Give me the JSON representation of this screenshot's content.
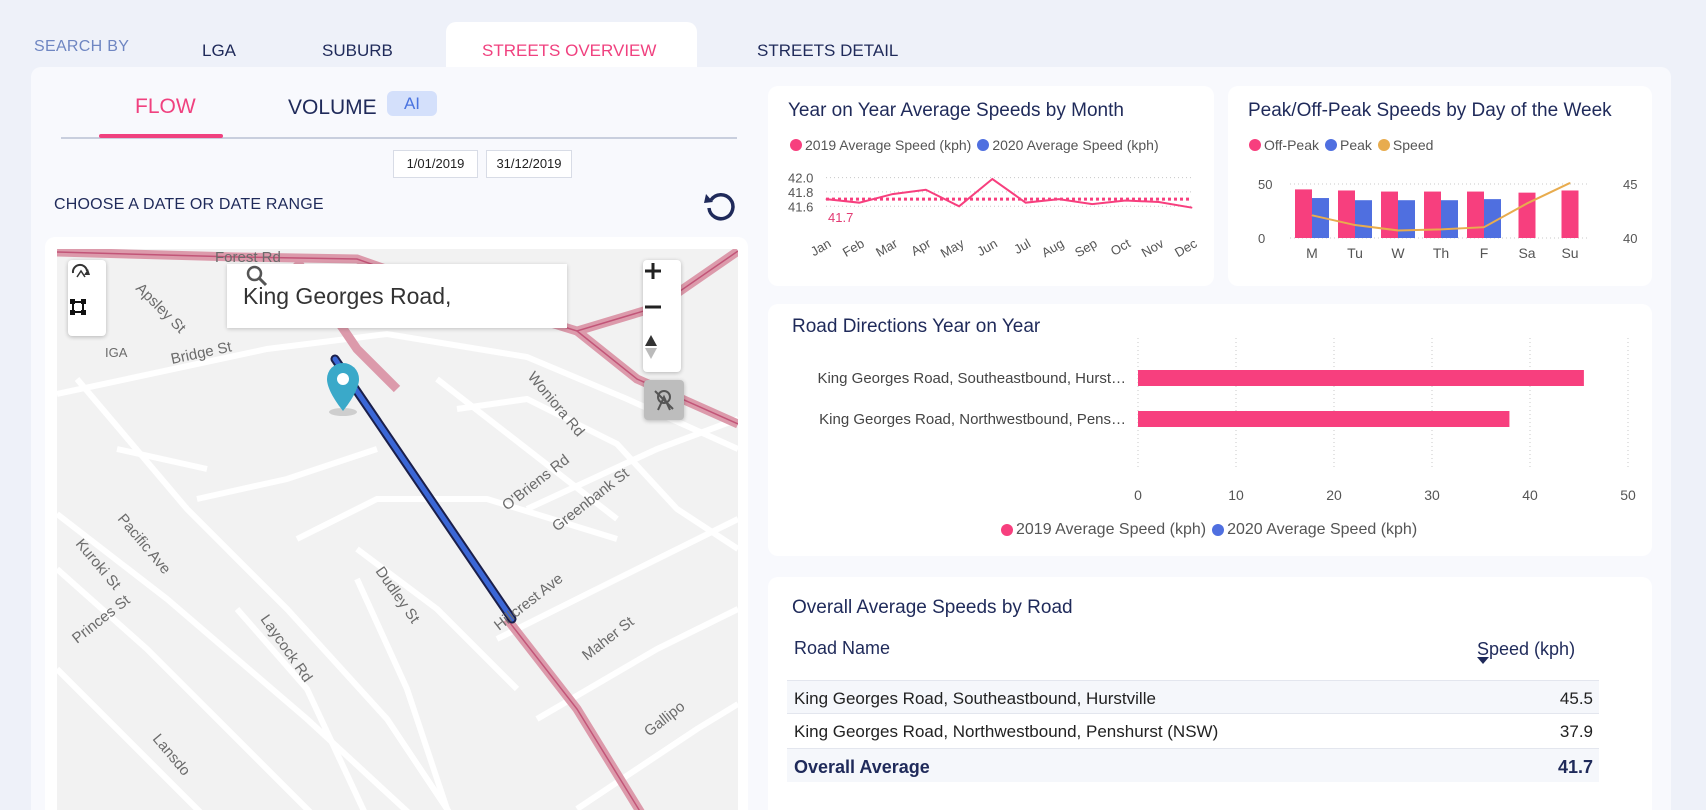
{
  "nav": {
    "search_by": "SEARCH BY",
    "tabs": [
      "LGA",
      "SUBURB",
      "STREETS OVERVIEW",
      "STREETS DETAIL"
    ],
    "active": "STREETS OVERVIEW"
  },
  "left": {
    "tab_flow": "FLOW",
    "tab_volume": "VOLUME",
    "ai_badge": "AI",
    "start_date": "1/01/2019",
    "end_date": "31/12/2019",
    "choose_label": "CHOOSE A DATE OR DATE RANGE"
  },
  "map": {
    "search_value": "King Georges Road,",
    "street_labels": [
      "Forest Rd",
      "Apsley St",
      "Bridge St",
      "IGA",
      "Woniora Rd",
      "O'Briens Rd",
      "Greenbank St",
      "Pacific Ave",
      "Kuroki St",
      "Princes St",
      "Laycock Rd",
      "Dudley St",
      "Hillcrest Ave",
      "Maher St",
      "Lansdo",
      "Gallipo"
    ],
    "icons": [
      "rotate-map-icon",
      "select-area-icon",
      "zoom-in-icon",
      "zoom-out-icon",
      "compass-icon",
      "traffic-layer-icon",
      "location-pin-icon",
      "search-icon"
    ]
  },
  "colors": {
    "pink": "#f73f7e",
    "blue": "#4f6fe0",
    "gold": "#e8ac4e",
    "navy": "#1f2a5a"
  },
  "chart_data": [
    {
      "type": "line",
      "title": "Year on Year Average Speeds by Month",
      "legend": [
        "2019 Average Speed (kph)",
        "2020 Average Speed (kph)"
      ],
      "categories": [
        "Jan",
        "Feb",
        "Mar",
        "Apr",
        "May",
        "Jun",
        "Jul",
        "Aug",
        "Sep",
        "Oct",
        "Nov",
        "Dec"
      ],
      "series": [
        {
          "name": "2019 Average Speed (kph)",
          "values": [
            41.7,
            41.65,
            41.77,
            41.83,
            41.6,
            41.98,
            41.65,
            41.7,
            41.63,
            41.68,
            41.66,
            41.58
          ]
        }
      ],
      "average_line": 41.7,
      "average_label": "41.7",
      "yticks": [
        "42.0",
        "41.8",
        "41.6"
      ],
      "ylim": [
        41.52,
        42.05
      ]
    },
    {
      "type": "bar",
      "title": "Peak/Off-Peak Speeds by Day of the Week",
      "legend": [
        "Off-Peak",
        "Peak",
        "Speed"
      ],
      "categories": [
        "M",
        "Tu",
        "W",
        "Th",
        "F",
        "Sa",
        "Su"
      ],
      "series": [
        {
          "name": "Off-Peak",
          "values": [
            45,
            44,
            43,
            43,
            43,
            42,
            44
          ]
        },
        {
          "name": "Peak",
          "values": [
            37,
            35,
            35,
            35,
            36,
            null,
            null
          ]
        },
        {
          "name": "Speed",
          "axis": "right",
          "values": [
            42.1,
            41.2,
            40.7,
            40.8,
            41.0,
            43.2,
            45.1
          ]
        }
      ],
      "yticks_left": [
        "50",
        "0"
      ],
      "yticks_right": [
        "45",
        "40"
      ],
      "ylim_left": [
        0,
        50
      ],
      "ylim_right": [
        40,
        45
      ]
    },
    {
      "type": "bar",
      "orientation": "horizontal",
      "title": "Road Directions Year on Year",
      "categories": [
        "King Georges Road, Southeastbound, Hurst…",
        "King Georges Road, Northwestbound, Pens…"
      ],
      "series": [
        {
          "name": "2019 Average Speed (kph)",
          "values": [
            45.5,
            37.9
          ]
        }
      ],
      "legend": [
        "2019 Average Speed (kph)",
        "2020 Average Speed (kph)"
      ],
      "xticks": [
        "0",
        "10",
        "20",
        "30",
        "40",
        "50"
      ],
      "xlim": [
        0,
        50
      ]
    },
    {
      "type": "table",
      "title": "Overall Average Speeds by Road",
      "columns": [
        "Road Name",
        "Speed (kph)"
      ],
      "rows": [
        [
          "King Georges Road, Southeastbound, Hurstville",
          "45.5"
        ],
        [
          "King Georges Road, Northwestbound, Penshurst (NSW)",
          "37.9"
        ]
      ],
      "total": [
        "Overall Average",
        "41.7"
      ]
    }
  ]
}
